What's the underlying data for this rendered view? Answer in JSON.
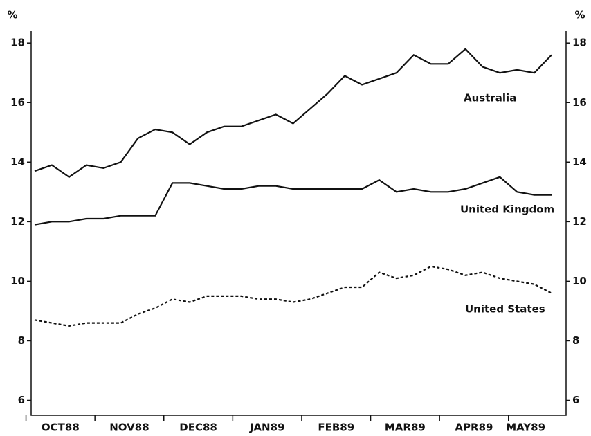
{
  "chart_data": {
    "type": "line",
    "ylabel": "%",
    "y2label": "%",
    "categories": [
      null,
      null,
      "OCT88",
      null,
      null,
      null,
      "NOV88",
      null,
      null,
      null,
      "DEC88",
      null,
      null,
      null,
      "JAN89",
      null,
      null,
      null,
      "FEB89",
      null,
      null,
      null,
      "MAR89",
      null,
      null,
      null,
      "APR89",
      null,
      null,
      "MAY89",
      null
    ],
    "ylim": [
      5.5,
      18.4
    ],
    "yticks": [
      6,
      8,
      10,
      12,
      14,
      16,
      18
    ],
    "series": [
      {
        "name": "Australia",
        "color": "#111111",
        "line_style": "solid",
        "values": [
          13.7,
          13.9,
          13.5,
          13.9,
          13.8,
          14.0,
          14.8,
          15.1,
          15.0,
          14.6,
          15.0,
          15.2,
          15.2,
          15.4,
          15.6,
          15.3,
          15.8,
          16.3,
          16.9,
          16.6,
          16.8,
          17.0,
          17.6,
          17.3,
          17.3,
          17.8,
          17.2,
          17.0,
          17.1,
          17.0,
          17.6
        ]
      },
      {
        "name": "United Kingdom",
        "color": "#111111",
        "line_style": "solid",
        "values": [
          11.9,
          12.0,
          12.0,
          12.1,
          12.1,
          12.2,
          12.2,
          12.2,
          13.3,
          13.3,
          13.2,
          13.1,
          13.1,
          13.2,
          13.2,
          13.1,
          13.1,
          13.1,
          13.1,
          13.1,
          13.4,
          13.0,
          13.1,
          13.0,
          13.0,
          13.1,
          13.3,
          13.5,
          13.0,
          12.9,
          12.9
        ]
      },
      {
        "name": "United States",
        "color": "#111111",
        "line_style": "dashed",
        "values": [
          8.7,
          8.6,
          8.5,
          8.6,
          8.6,
          8.6,
          8.9,
          9.1,
          9.4,
          9.3,
          9.5,
          9.5,
          9.5,
          9.4,
          9.4,
          9.3,
          9.4,
          9.6,
          9.8,
          9.8,
          10.3,
          10.1,
          10.2,
          10.5,
          10.4,
          10.2,
          10.3,
          10.1,
          10.0,
          9.9,
          9.6
        ]
      }
    ]
  }
}
